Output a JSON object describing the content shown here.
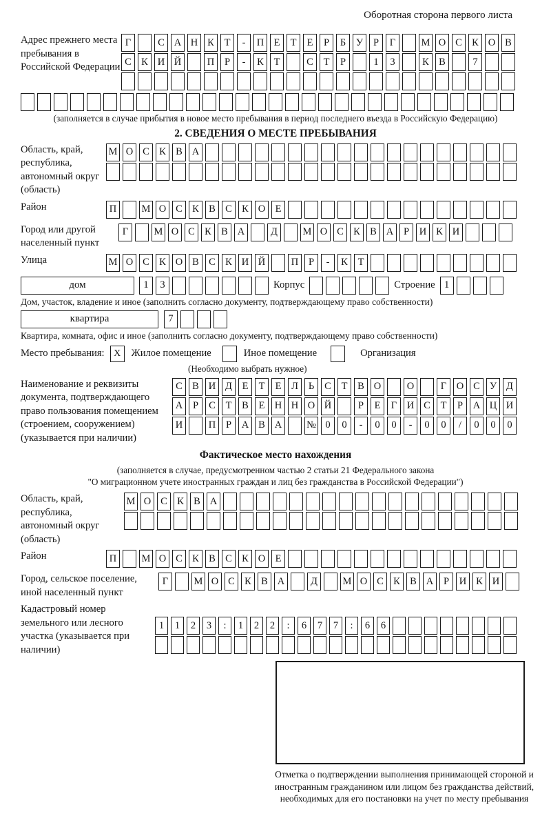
{
  "header": {
    "title": "Оборотная сторона первого листа"
  },
  "prev_address": {
    "label": "Адрес прежнего места пребывания в Российской Федерации",
    "row1": "Г САНКТ-ПЕТЕРБУРГ МОСКОВ",
    "row2": "СКИЙ ПР-КТ СТР 13 КВ 7",
    "row3": "",
    "row4": "",
    "note": "(заполняется в случае прибытия в новое место пребывания в период последнего въезда в Российскую Федерацию)"
  },
  "section2": {
    "title": "2. СВЕДЕНИЯ О МЕСТЕ ПРЕБЫВАНИЯ",
    "region": {
      "label": "Область, край, республика, автономный округ (область)",
      "row1": "МОСКВА",
      "row2": ""
    },
    "district": {
      "label": "Район",
      "value": "П МОСКВСКОЕ"
    },
    "city": {
      "label": "Город или другой населенный пункт",
      "value": "Г МОСКВА Д МОСКВАРИКИ"
    },
    "street": {
      "label": "Улица",
      "value": "МОСКОВСКИЙ ПР-КТ"
    },
    "house": {
      "box_label": "дом",
      "value": "13",
      "korpus_label": "Корпус",
      "korpus_value": "",
      "stroenie_label": "Строение",
      "stroenie_value": "1",
      "note": "Дом, участок, владение и иное (заполнить согласно документу, подтверждающему право собственности)"
    },
    "apartment": {
      "box_label": "квартира",
      "value": "7",
      "note": "Квартира, комната, офис и иное (заполнить согласно документу, подтверждающему право собственности)"
    },
    "stay_place": {
      "label": "Место пребывания:",
      "residential_mark": "X",
      "residential_label": "Жилое помещение",
      "other_mark": "",
      "other_label": "Иное помещение",
      "organization_mark": "",
      "organization_label": "Организация",
      "note": "(Необходимо выбрать нужное)"
    },
    "document": {
      "label": "Наименование и реквизиты документа, подтверждающего право пользования помещением (строением, сооружением) (указывается при наличии)",
      "row1": "СВИДЕТЕЛЬСТВО О ГОСУД",
      "row2": "АРСТВЕННОЙ РЕГИСТРАЦИ",
      "row3": "И ПРАВА №00-00-00/000"
    }
  },
  "actual_location": {
    "title": "Фактическое место нахождения",
    "note1": "(заполняется в случае, предусмотренном частью 2 статьи 21 Федерального закона",
    "note2": "\"О миграционном учете иностранных граждан и лиц без гражданства в Российской Федерации\")",
    "region": {
      "label": "Область, край, республика, автономный округ (область)",
      "row1": "МОСКВА",
      "row2": ""
    },
    "district": {
      "label": "Район",
      "value": "П МОСКВСКОЕ"
    },
    "city": {
      "label": "Город, сельское поселение, иной населенный пункт",
      "value": "Г МОСКВА Д МОСКВАРИКИ"
    },
    "cadastre": {
      "label": "Кадастровый номер земельного или лесного участка (указывается при наличии)",
      "row1": "1123:122:677:66",
      "row2": ""
    },
    "stamp_note": "Отметка о подтверждении выполнения принимающей стороной и иностранным гражданином или лицом без гражданства действий, необходимых для его постановки на учет по месту пребывания"
  }
}
